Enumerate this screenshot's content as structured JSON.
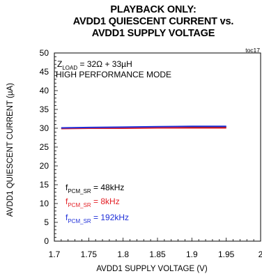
{
  "chart_data": {
    "type": "line",
    "title_lines": [
      "PLAYBACK ONLY:",
      "AVDD1 QUIESCENT CURRENT vs.",
      "AVDD1 SUPPLY VOLTAGE"
    ],
    "figure_id": "toc17",
    "xlabel": "AVDD1 SUPPLY VOLTAGE (V)",
    "ylabel": "AVDD1 QUIESCENT CURRENT (µA)",
    "xlim": [
      1.7,
      2.0
    ],
    "ylim": [
      0,
      50
    ],
    "x_ticks": [
      "1.7",
      "1.75",
      "1.8",
      "1.85",
      "1.9",
      "1.95",
      "2"
    ],
    "y_ticks": [
      "0",
      "5",
      "10",
      "15",
      "20",
      "25",
      "30",
      "35",
      "40",
      "45",
      "50"
    ],
    "grid": false,
    "conditions": {
      "load_prefix": "Z",
      "load_sub": "LOAD",
      "load_value": " = 32Ω + 33µH",
      "mode": "HIGH PERFORMANCE MODE"
    },
    "series": [
      {
        "name": "48kHz",
        "label_prefix": "f",
        "label_sub": "PCM_SR",
        "label_value": " = 48kHz",
        "color": "#000000",
        "x": [
          1.71,
          1.75,
          1.8,
          1.85,
          1.9,
          1.95
        ],
        "y": [
          30.0,
          30.1,
          30.2,
          30.2,
          30.3,
          30.3
        ]
      },
      {
        "name": "8kHz",
        "label_prefix": "f",
        "label_sub": "PCM_SR",
        "label_value": " = 8kHz",
        "color": "#e31e24",
        "x": [
          1.71,
          1.75,
          1.8,
          1.85,
          1.9,
          1.95
        ],
        "y": [
          29.9,
          30.0,
          30.0,
          30.1,
          30.1,
          30.1
        ]
      },
      {
        "name": "192kHz",
        "label_prefix": "f",
        "label_sub": "PCM_SR",
        "label_value": " = 192kHz",
        "color": "#1f2fd8",
        "x": [
          1.71,
          1.75,
          1.8,
          1.85,
          1.9,
          1.95
        ],
        "y": [
          30.1,
          30.2,
          30.3,
          30.4,
          30.5,
          30.5
        ]
      }
    ]
  }
}
